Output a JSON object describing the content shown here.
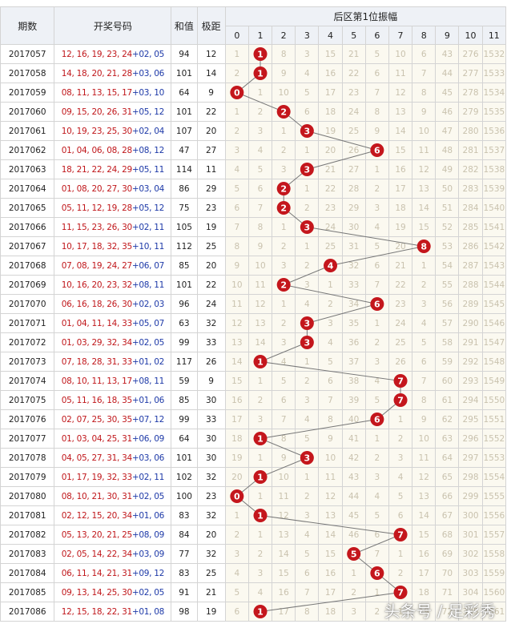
{
  "header": {
    "period": "期数",
    "numbers": "开奖号码",
    "sum": "和值",
    "span": "极距",
    "zone": "后区第1位振幅",
    "cols": [
      "0",
      "1",
      "2",
      "3",
      "4",
      "5",
      "6",
      "7",
      "8",
      "9",
      "10",
      "11"
    ]
  },
  "watermark": "头条号 / 足彩秀",
  "colors": {
    "ball": "#c4161c",
    "line": "#777777",
    "red_text": "#c0171b",
    "blue_text": "#1e3aa8"
  },
  "chart_data": {
    "type": "line",
    "title": "后区第1位振幅",
    "x_label": "期数",
    "y_label": "振幅",
    "x_range": [
      0,
      11
    ],
    "rows": [
      {
        "period": "2017057",
        "front": "12, 16, 19, 23, 24",
        "back": "+02, 05",
        "sum": "94",
        "span": "12",
        "value": 1,
        "cells": [
          "1",
          "1",
          "8",
          "3",
          "15",
          "21",
          "5",
          "10",
          "6",
          "43",
          "276",
          "1532"
        ]
      },
      {
        "period": "2017058",
        "front": "14, 18, 20, 21, 28",
        "back": "+03, 06",
        "sum": "101",
        "span": "14",
        "value": 1,
        "cells": [
          "2",
          "1",
          "9",
          "4",
          "16",
          "22",
          "6",
          "11",
          "7",
          "44",
          "277",
          "1533"
        ]
      },
      {
        "period": "2017059",
        "front": "08, 11, 13, 15, 17",
        "back": "+03, 10",
        "sum": "64",
        "span": "9",
        "value": 0,
        "cells": [
          "0",
          "1",
          "10",
          "5",
          "17",
          "23",
          "7",
          "12",
          "8",
          "45",
          "278",
          "1534"
        ]
      },
      {
        "period": "2017060",
        "front": "09, 15, 20, 26, 31",
        "back": "+05, 12",
        "sum": "101",
        "span": "22",
        "value": 2,
        "cells": [
          "1",
          "2",
          "2",
          "6",
          "18",
          "24",
          "8",
          "13",
          "9",
          "46",
          "279",
          "1535"
        ]
      },
      {
        "period": "2017061",
        "front": "10, 19, 23, 25, 30",
        "back": "+02, 04",
        "sum": "107",
        "span": "20",
        "value": 3,
        "cells": [
          "2",
          "3",
          "1",
          "3",
          "19",
          "25",
          "9",
          "14",
          "10",
          "47",
          "280",
          "1536"
        ]
      },
      {
        "period": "2017062",
        "front": "01, 04, 06, 08, 28",
        "back": "+08, 12",
        "sum": "47",
        "span": "27",
        "value": 6,
        "cells": [
          "3",
          "4",
          "2",
          "1",
          "20",
          "26",
          "6",
          "15",
          "11",
          "48",
          "281",
          "1537"
        ]
      },
      {
        "period": "2017063",
        "front": "18, 21, 22, 24, 29",
        "back": "+05, 11",
        "sum": "114",
        "span": "11",
        "value": 3,
        "cells": [
          "4",
          "5",
          "3",
          "3",
          "21",
          "27",
          "1",
          "16",
          "12",
          "49",
          "282",
          "1538"
        ]
      },
      {
        "period": "2017064",
        "front": "01, 08, 20, 27, 30",
        "back": "+03, 04",
        "sum": "86",
        "span": "29",
        "value": 2,
        "cells": [
          "5",
          "6",
          "2",
          "1",
          "22",
          "28",
          "2",
          "17",
          "13",
          "50",
          "283",
          "1539"
        ]
      },
      {
        "period": "2017065",
        "front": "05, 11, 12, 19, 28",
        "back": "+05, 12",
        "sum": "75",
        "span": "23",
        "value": 2,
        "cells": [
          "6",
          "7",
          "2",
          "2",
          "23",
          "29",
          "3",
          "18",
          "14",
          "51",
          "284",
          "1540"
        ]
      },
      {
        "period": "2017066",
        "front": "11, 15, 23, 26, 30",
        "back": "+02, 11",
        "sum": "105",
        "span": "19",
        "value": 3,
        "cells": [
          "7",
          "8",
          "1",
          "3",
          "24",
          "30",
          "4",
          "19",
          "15",
          "52",
          "285",
          "1541"
        ]
      },
      {
        "period": "2017067",
        "front": "10, 17, 18, 32, 35",
        "back": "+10, 11",
        "sum": "112",
        "span": "25",
        "value": 8,
        "cells": [
          "8",
          "9",
          "2",
          "1",
          "25",
          "31",
          "5",
          "20",
          "8",
          "53",
          "286",
          "1542"
        ]
      },
      {
        "period": "2017068",
        "front": "07, 08, 19, 24, 27",
        "back": "+06, 07",
        "sum": "85",
        "span": "20",
        "value": 4,
        "cells": [
          "9",
          "10",
          "3",
          "2",
          "4",
          "32",
          "6",
          "21",
          "1",
          "54",
          "287",
          "1543"
        ]
      },
      {
        "period": "2017069",
        "front": "10, 16, 20, 23, 32",
        "back": "+08, 11",
        "sum": "101",
        "span": "22",
        "value": 2,
        "cells": [
          "10",
          "11",
          "2",
          "3",
          "1",
          "33",
          "7",
          "22",
          "2",
          "55",
          "288",
          "1544"
        ]
      },
      {
        "period": "2017070",
        "front": "06, 16, 18, 26, 30",
        "back": "+02, 03",
        "sum": "96",
        "span": "24",
        "value": 6,
        "cells": [
          "11",
          "12",
          "1",
          "4",
          "2",
          "34",
          "6",
          "23",
          "3",
          "56",
          "289",
          "1545"
        ]
      },
      {
        "period": "2017071",
        "front": "01, 04, 11, 14, 33",
        "back": "+05, 07",
        "sum": "63",
        "span": "32",
        "value": 3,
        "cells": [
          "12",
          "13",
          "2",
          "3",
          "3",
          "35",
          "1",
          "24",
          "4",
          "57",
          "290",
          "1546"
        ]
      },
      {
        "period": "2017072",
        "front": "01, 03, 29, 32, 34",
        "back": "+02, 05",
        "sum": "99",
        "span": "33",
        "value": 3,
        "cells": [
          "13",
          "14",
          "3",
          "3",
          "4",
          "36",
          "2",
          "25",
          "5",
          "58",
          "291",
          "1547"
        ]
      },
      {
        "period": "2017073",
        "front": "07, 18, 28, 31, 33",
        "back": "+01, 02",
        "sum": "117",
        "span": "26",
        "value": 1,
        "cells": [
          "14",
          "1",
          "4",
          "1",
          "5",
          "37",
          "3",
          "26",
          "6",
          "59",
          "292",
          "1548"
        ]
      },
      {
        "period": "2017074",
        "front": "08, 10, 11, 13, 17",
        "back": "+08, 11",
        "sum": "59",
        "span": "9",
        "value": 7,
        "cells": [
          "15",
          "1",
          "5",
          "2",
          "6",
          "38",
          "4",
          "7",
          "7",
          "60",
          "293",
          "1549"
        ]
      },
      {
        "period": "2017075",
        "front": "05, 11, 16, 18, 35",
        "back": "+01, 06",
        "sum": "85",
        "span": "30",
        "value": 7,
        "cells": [
          "16",
          "2",
          "6",
          "3",
          "7",
          "39",
          "5",
          "7",
          "8",
          "61",
          "294",
          "1550"
        ]
      },
      {
        "period": "2017076",
        "front": "02, 07, 25, 30, 35",
        "back": "+07, 12",
        "sum": "99",
        "span": "33",
        "value": 6,
        "cells": [
          "17",
          "3",
          "7",
          "4",
          "8",
          "40",
          "6",
          "1",
          "9",
          "62",
          "295",
          "1551"
        ]
      },
      {
        "period": "2017077",
        "front": "01, 03, 04, 25, 31",
        "back": "+06, 09",
        "sum": "64",
        "span": "30",
        "value": 1,
        "cells": [
          "18",
          "1",
          "8",
          "5",
          "9",
          "41",
          "1",
          "2",
          "10",
          "63",
          "296",
          "1552"
        ]
      },
      {
        "period": "2017078",
        "front": "04, 05, 27, 31, 34",
        "back": "+03, 06",
        "sum": "101",
        "span": "30",
        "value": 3,
        "cells": [
          "19",
          "1",
          "9",
          "3",
          "10",
          "42",
          "2",
          "3",
          "11",
          "64",
          "297",
          "1553"
        ]
      },
      {
        "period": "2017079",
        "front": "01, 17, 19, 32, 33",
        "back": "+02, 11",
        "sum": "102",
        "span": "32",
        "value": 1,
        "cells": [
          "20",
          "1",
          "10",
          "1",
          "11",
          "43",
          "3",
          "4",
          "12",
          "65",
          "298",
          "1554"
        ]
      },
      {
        "period": "2017080",
        "front": "08, 10, 21, 30, 31",
        "back": "+02, 05",
        "sum": "100",
        "span": "23",
        "value": 0,
        "cells": [
          "0",
          "1",
          "11",
          "2",
          "12",
          "44",
          "4",
          "5",
          "13",
          "66",
          "299",
          "1555"
        ]
      },
      {
        "period": "2017081",
        "front": "02, 12, 15, 20, 34",
        "back": "+01, 06",
        "sum": "83",
        "span": "32",
        "value": 1,
        "cells": [
          "1",
          "1",
          "12",
          "3",
          "13",
          "45",
          "5",
          "6",
          "14",
          "67",
          "300",
          "1556"
        ]
      },
      {
        "period": "2017082",
        "front": "05, 13, 20, 21, 25",
        "back": "+08, 09",
        "sum": "84",
        "span": "20",
        "value": 7,
        "cells": [
          "2",
          "1",
          "13",
          "4",
          "14",
          "46",
          "6",
          "7",
          "15",
          "68",
          "301",
          "1557"
        ]
      },
      {
        "period": "2017083",
        "front": "02, 05, 14, 22, 34",
        "back": "+03, 09",
        "sum": "77",
        "span": "32",
        "value": 5,
        "cells": [
          "3",
          "2",
          "14",
          "5",
          "15",
          "5",
          "7",
          "1",
          "16",
          "69",
          "302",
          "1558"
        ]
      },
      {
        "period": "2017084",
        "front": "06, 11, 14, 21, 31",
        "back": "+09, 12",
        "sum": "83",
        "span": "25",
        "value": 6,
        "cells": [
          "4",
          "3",
          "15",
          "6",
          "16",
          "1",
          "6",
          "2",
          "17",
          "70",
          "303",
          "1559"
        ]
      },
      {
        "period": "2017085",
        "front": "09, 13, 14, 25, 30",
        "back": "+02, 05",
        "sum": "91",
        "span": "21",
        "value": 7,
        "cells": [
          "5",
          "4",
          "16",
          "7",
          "17",
          "2",
          "1",
          "7",
          "18",
          "71",
          "304",
          "1560"
        ]
      },
      {
        "period": "2017086",
        "front": "12, 15, 18, 22, 31",
        "back": "+01, 08",
        "sum": "98",
        "span": "19",
        "value": 1,
        "cells": [
          "6",
          "1",
          "17",
          "8",
          "18",
          "3",
          "2",
          "1",
          "19",
          "72",
          "305",
          "1561"
        ]
      }
    ]
  }
}
